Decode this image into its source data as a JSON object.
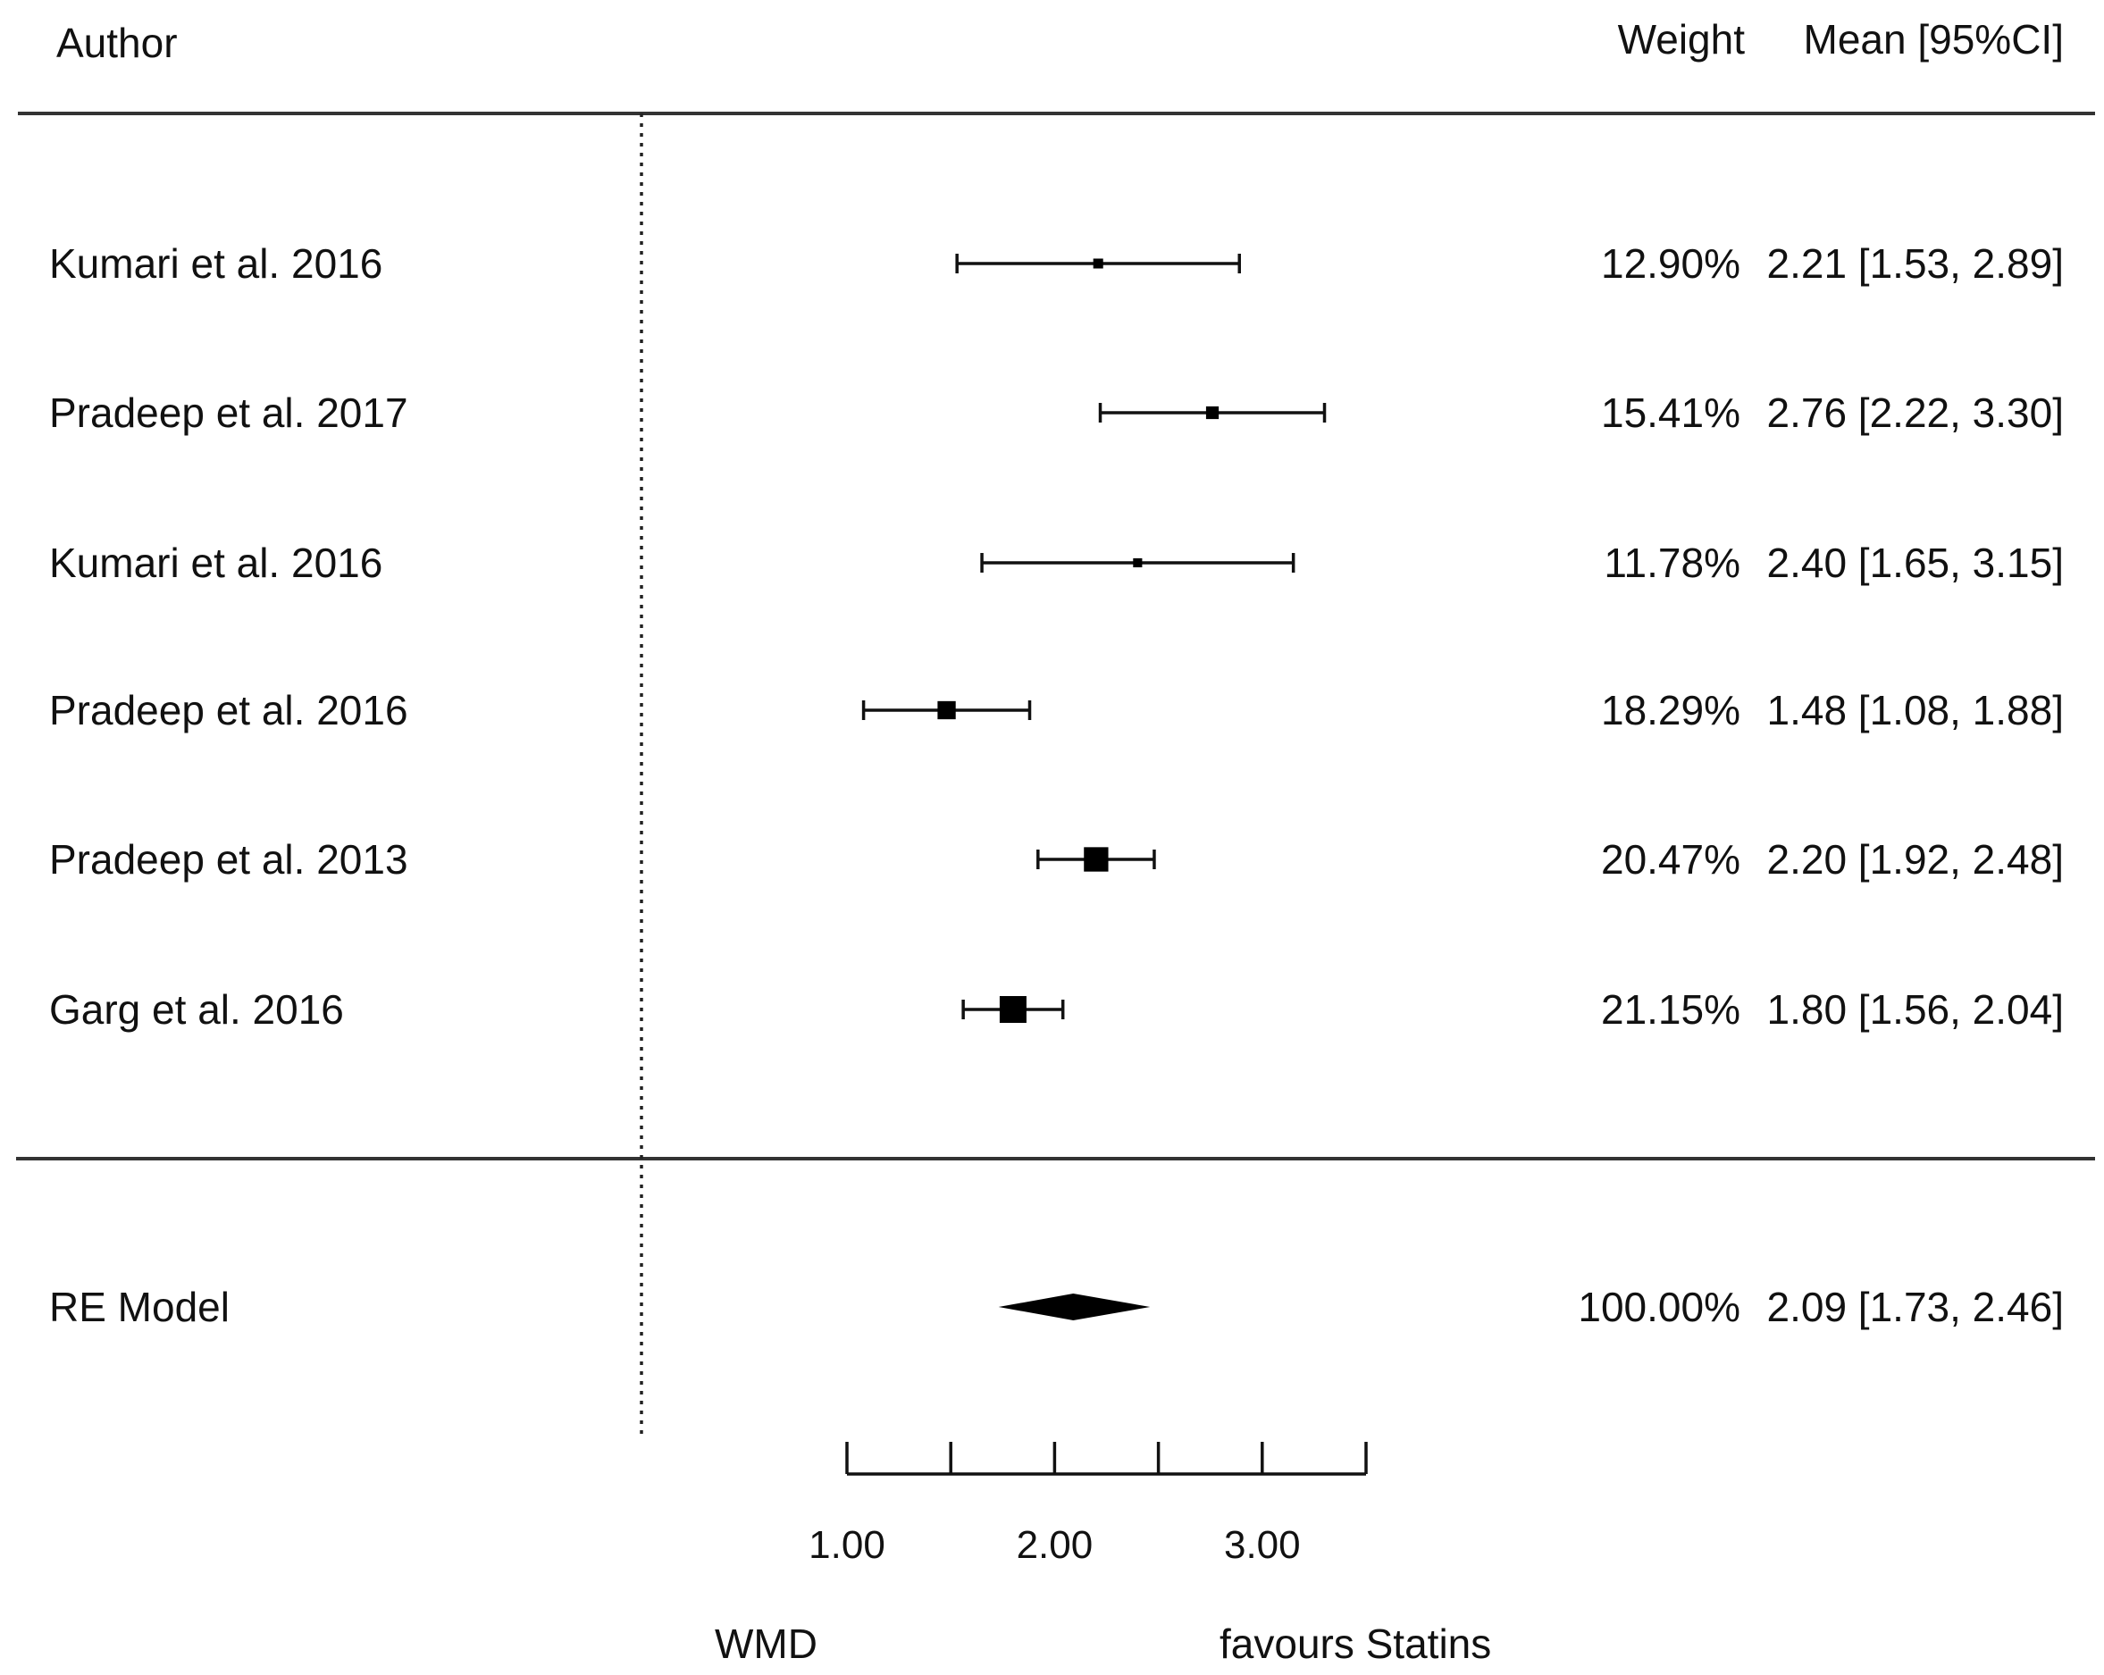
{
  "chart_data": {
    "type": "forest",
    "headers": {
      "author": "Author",
      "weight": "Weight",
      "mean": "Mean [95%CI]"
    },
    "studies": [
      {
        "author": "Kumari et al. 2016",
        "weight": "12.90%",
        "mean": 2.21,
        "lower": 1.53,
        "upper": 2.89,
        "ci_text": "2.21 [1.53, 2.89]"
      },
      {
        "author": "Pradeep et al. 2017",
        "weight": "15.41%",
        "mean": 2.76,
        "lower": 2.22,
        "upper": 3.3,
        "ci_text": "2.76 [2.22, 3.30]"
      },
      {
        "author": "Kumari et al. 2016",
        "weight": "11.78%",
        "mean": 2.4,
        "lower": 1.65,
        "upper": 3.15,
        "ci_text": "2.40 [1.65, 3.15]"
      },
      {
        "author": "Pradeep et al. 2016",
        "weight": "18.29%",
        "mean": 1.48,
        "lower": 1.08,
        "upper": 1.88,
        "ci_text": "1.48 [1.08, 1.88]"
      },
      {
        "author": "Pradeep et al. 2013",
        "weight": "20.47%",
        "mean": 2.2,
        "lower": 1.92,
        "upper": 2.48,
        "ci_text": "2.20 [1.92, 2.48]"
      },
      {
        "author": "Garg et al. 2016",
        "weight": "21.15%",
        "mean": 1.8,
        "lower": 1.56,
        "upper": 2.04,
        "ci_text": "1.80 [1.56, 2.04]"
      }
    ],
    "summary": {
      "label": "RE Model",
      "weight": "100.00%",
      "mean": 2.09,
      "lower": 1.73,
      "upper": 2.46,
      "ci_text": "2.09 [1.73, 2.46]"
    },
    "axis": {
      "xlim": [
        1.0,
        3.5
      ],
      "ticks": [
        1.0,
        1.5,
        2.0,
        2.5,
        3.0,
        3.5
      ],
      "tick_labels": [
        "1.00",
        "",
        "2.00",
        "",
        "3.00",
        ""
      ],
      "reference_line": 0,
      "left_label": "WMD",
      "right_label": "favours Statins"
    }
  }
}
